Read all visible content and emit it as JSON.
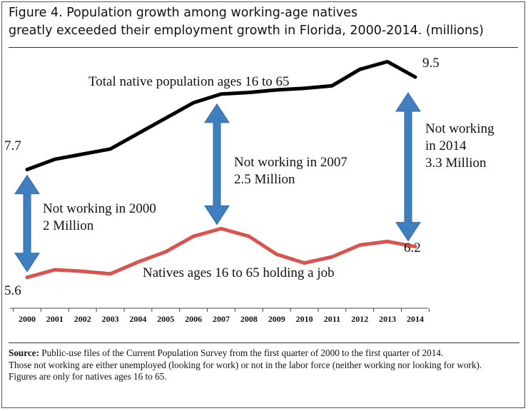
{
  "chart_data": {
    "type": "line",
    "title": "Figure 4. Population growth among working-age natives greatly exceeded their employment growth in Florida, 2000-2014. (millions)",
    "x": [
      "2000",
      "2001",
      "2002",
      "2003",
      "2004",
      "2005",
      "2006",
      "2007",
      "2008",
      "2009",
      "2010",
      "2011",
      "2012",
      "2013",
      "2014"
    ],
    "ylim": [
      5.0,
      10.0
    ],
    "grid": false,
    "series": [
      {
        "name": "Total native population ages 16 to 65",
        "color": "#000000",
        "values": [
          7.7,
          7.9,
          8.0,
          8.1,
          8.4,
          8.7,
          9.0,
          9.17,
          9.2,
          9.25,
          9.28,
          9.33,
          9.65,
          9.8,
          9.5
        ]
      },
      {
        "name": "Natives ages 16 to 65 holding a job",
        "color": "#d9534f",
        "values": [
          5.6,
          5.75,
          5.72,
          5.67,
          5.9,
          6.1,
          6.4,
          6.55,
          6.4,
          6.05,
          5.88,
          6.0,
          6.23,
          6.3,
          6.2
        ]
      }
    ],
    "annotations": {
      "total_line_label": "Total native population ages 16 to 65",
      "job_line_label": "Natives ages 16 to 65 holding a job",
      "start_total": "7.7",
      "start_job": "5.6",
      "end_total": "9.5",
      "end_job": "6.2",
      "gap_2000_line1": "Not working in 2000",
      "gap_2000_line2": "2 Million",
      "gap_2007_line1": "Not working in 2007",
      "gap_2007_line2": "2.5 Million",
      "gap_2014_line1": "Not working",
      "gap_2014_line2": "in 2014",
      "gap_2014_line3": "3.3 Million"
    },
    "arrow_color": "#3f7fbf"
  },
  "title_line1": "Figure 4. Population growth among working-age natives",
  "title_line2": "greatly exceeded their employment growth in Florida, 2000-2014. (millions)",
  "source": {
    "label": "Source:",
    "line1": " Public-use files of  the Current Population Survey from the first quarter of 2000 to the first quarter of 2014.",
    "line2": "Those not working are either unemployed (looking for work) or not in the labor force (neither working nor looking for work).",
    "line3": "Figures are only for natives ages 16 to 65."
  }
}
